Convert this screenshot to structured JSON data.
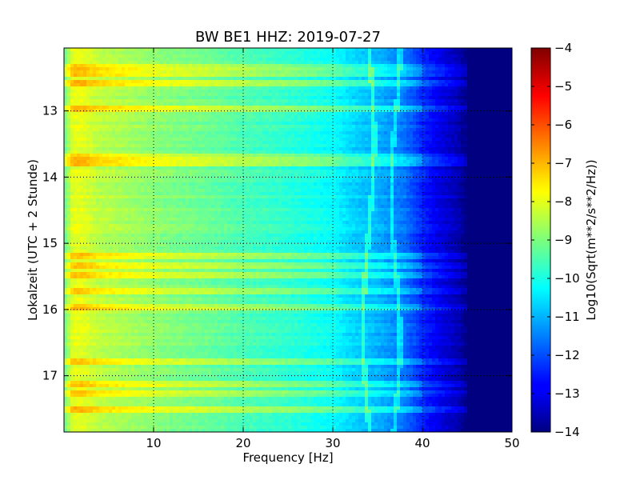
{
  "chart_data": {
    "type": "heatmap",
    "title": "BW BE1 HHZ: 2019-07-27",
    "xlabel": "Frequency [Hz]",
    "ylabel": "Lokalzeit (UTC + 2 Stunde)",
    "xlim": [
      0,
      50
    ],
    "ylim": [
      12.05,
      17.85
    ],
    "y_inverted": true,
    "x_ticks": [
      10,
      20,
      30,
      40,
      50
    ],
    "x_tick_labels": [
      "10",
      "20",
      "30",
      "40",
      "50"
    ],
    "y_ticks": [
      13,
      14,
      15,
      16,
      17
    ],
    "y_tick_labels": [
      "13",
      "14",
      "15",
      "16",
      "17"
    ],
    "grid": true,
    "colorbar": {
      "label": "Log10(Sqrt(m**2/s**2/Hz))",
      "min": -14,
      "max": -4,
      "ticks": [
        -4,
        -5,
        -6,
        -7,
        -8,
        -9,
        -10,
        -11,
        -12,
        -13,
        -14
      ],
      "tick_labels": [
        "−4",
        "−5",
        "−6",
        "−7",
        "−8",
        "−9",
        "−10",
        "−11",
        "−12",
        "−13",
        "−14"
      ],
      "colormap": "jet"
    },
    "spectrum_profile": {
      "frequency_hz": [
        0,
        1,
        2,
        4,
        8,
        12,
        16,
        20,
        25,
        30,
        32,
        35,
        38,
        40,
        42,
        44,
        45,
        50
      ],
      "log10_amplitude": [
        -9.3,
        -8.0,
        -8.0,
        -8.4,
        -8.7,
        -9.0,
        -9.2,
        -9.5,
        -9.8,
        -10.2,
        -10.6,
        -11.0,
        -11.6,
        -12.4,
        -13.0,
        -13.5,
        -14.0,
        -14.0
      ]
    },
    "bright_horizontal_bands_time": [
      12.33,
      12.45,
      12.58,
      12.98,
      13.7,
      13.8,
      15.18,
      15.34,
      15.5,
      15.74,
      15.95,
      16.78,
      17.12,
      17.28,
      17.52
    ]
  }
}
